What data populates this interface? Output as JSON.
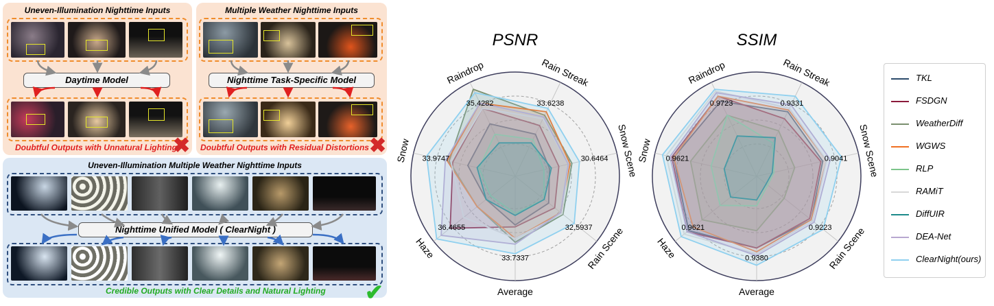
{
  "left": {
    "panel1": {
      "title": "Uneven-Illumination Nighttime Inputs",
      "model": "Daytime Model",
      "caption": "Doubtful Outputs with Unnatural Lighting"
    },
    "panel2": {
      "title": "Multiple Weather Nighttime Inputs",
      "model": "Nighttime Task-Specific Model",
      "caption": "Doubtful Outputs with Residual Distortions"
    },
    "panel3": {
      "title": "Uneven-Illumination Multiple Weather Nighttime Inputs",
      "model": "Nighttime Unified Model ( ClearNight )",
      "caption": "Credible Outputs with Clear Details and Natural Lighting"
    },
    "colors": {
      "orange_panel": "#fbe3d2",
      "orange_border": "#f08c2c",
      "blue_panel": "#dbe7f4",
      "blue_border": "#2f4f7f",
      "red_caption": "#e02020",
      "green_caption": "#22aa22",
      "red_arrow": "#e02020",
      "blue_arrow": "#3a6fc4",
      "grey_arrow": "#8a8a8a"
    },
    "icons": {
      "fail": "cross-mark-icon",
      "success": "check-mark-icon"
    }
  },
  "chart_data": [
    {
      "type": "radar",
      "title": "PSNR",
      "axes": [
        "Rain Streak",
        "Snow Scene",
        "Rain Scene",
        "Average",
        "Haze",
        "Snow",
        "Raindrop"
      ],
      "max_labels": [
        "33.6238",
        "30.6464",
        "32.5937",
        "33.7337",
        "36.4655",
        "33.9747",
        "35.4282"
      ],
      "grid": true,
      "series": [
        {
          "name": "TKL",
          "color": "#2b4a6b",
          "values": [
            0.4,
            0.28,
            0.36,
            0.42,
            0.3,
            0.42,
            0.52
          ]
        },
        {
          "name": "FSDGN",
          "color": "#8b1a3a",
          "values": [
            0.5,
            0.38,
            0.44,
            0.44,
            0.78,
            0.58,
            0.7
          ]
        },
        {
          "name": "WeatherDiff",
          "color": "#7a8f6e",
          "values": [
            0.62,
            0.52,
            0.55,
            0.6,
            0.42,
            0.62,
            0.92
          ]
        },
        {
          "name": "WGWS",
          "color": "#f07022",
          "values": [
            0.66,
            0.5,
            0.52,
            0.56,
            0.42,
            0.64,
            0.76
          ]
        },
        {
          "name": "RLP",
          "color": "#7cc48a",
          "values": [
            0.34,
            0.22,
            0.3,
            0.3,
            0.24,
            0.3,
            0.4
          ]
        },
        {
          "name": "RAMiT",
          "color": "#d8d8d8",
          "values": [
            0.58,
            0.48,
            0.54,
            0.56,
            0.6,
            0.6,
            0.7
          ]
        },
        {
          "name": "DiffUIR",
          "color": "#1c8a8a",
          "values": [
            0.3,
            0.3,
            0.3,
            0.32,
            0.3,
            0.32,
            0.3
          ]
        },
        {
          "name": "DEA-Net",
          "color": "#b8a8d0",
          "values": [
            0.6,
            0.48,
            0.52,
            0.62,
            0.9,
            0.66,
            0.76
          ]
        },
        {
          "name": "ClearNight(ours)",
          "color": "#8fd0ef",
          "values": [
            0.7,
            0.6,
            0.7,
            0.72,
            0.96,
            0.86,
            0.88
          ]
        }
      ]
    },
    {
      "type": "radar",
      "title": "SSIM",
      "axes": [
        "Rain Streak",
        "Snow Scene",
        "Rain Scene",
        "Average",
        "Haze",
        "Snow",
        "Raindrop"
      ],
      "max_labels": [
        "0.9331",
        "0.9041",
        "0.9223",
        "0.9380",
        "0.9621",
        "0.9621",
        "0.9723"
      ],
      "grid": true,
      "series": [
        {
          "name": "TKL",
          "color": "#2b4a6b",
          "values": [
            0.66,
            0.62,
            0.64,
            0.66,
            0.82,
            0.8,
            0.78
          ]
        },
        {
          "name": "FSDGN",
          "color": "#8b1a3a",
          "values": [
            0.58,
            0.6,
            0.62,
            0.66,
            0.84,
            0.82,
            0.84
          ]
        },
        {
          "name": "WeatherDiff",
          "color": "#7a8f6e",
          "values": [
            0.44,
            0.32,
            0.28,
            0.48,
            0.64,
            0.62,
            0.62
          ]
        },
        {
          "name": "WGWS",
          "color": "#f07022",
          "values": [
            0.68,
            0.66,
            0.64,
            0.7,
            0.76,
            0.8,
            0.84
          ]
        },
        {
          "name": "RLP",
          "color": "#7cc48a",
          "values": [
            0.3,
            0.1,
            0.06,
            0.22,
            0.4,
            0.4,
            0.62
          ]
        },
        {
          "name": "RAMiT",
          "color": "#d8d8d8",
          "values": [
            0.7,
            0.66,
            0.66,
            0.72,
            0.88,
            0.88,
            0.9
          ]
        },
        {
          "name": "DiffUIR",
          "color": "#1c8a8a",
          "values": [
            0.36,
            0.08,
            0.04,
            0.16,
            0.26,
            0.26,
            0.38
          ]
        },
        {
          "name": "DEA-Net",
          "color": "#b8a8d0",
          "values": [
            0.74,
            0.7,
            0.68,
            0.74,
            0.84,
            0.84,
            0.88
          ]
        },
        {
          "name": "ClearNight(ours)",
          "color": "#8fd0ef",
          "values": [
            0.84,
            0.82,
            0.8,
            0.84,
            0.92,
            0.92,
            0.92
          ]
        }
      ]
    }
  ]
}
